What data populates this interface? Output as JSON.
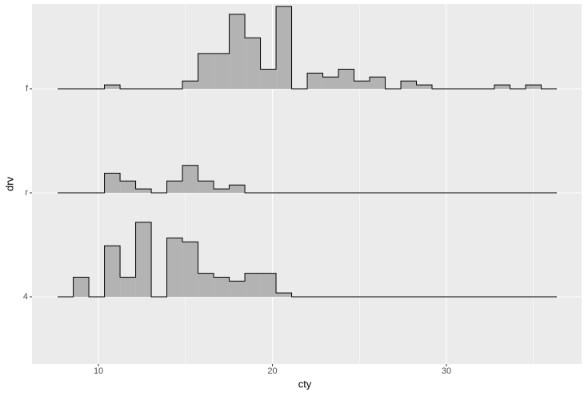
{
  "chart_data": {
    "type": "ridgeline-histogram",
    "x_label": "cty",
    "y_label": "drv",
    "categories": [
      "4",
      "r",
      "f"
    ],
    "bins": [
      7.655,
      8.552,
      9.448,
      10.345,
      11.241,
      12.138,
      13.035,
      13.931,
      14.828,
      15.724,
      16.621,
      17.517,
      18.414,
      19.31,
      20.207,
      21.103,
      22.0,
      22.897,
      23.793,
      24.69,
      25.586,
      26.483,
      27.379,
      28.276,
      29.172,
      30.069,
      30.966,
      31.862,
      32.759,
      33.655,
      34.552,
      35.448,
      36.345
    ],
    "values": [
      [
        0,
        5,
        0,
        13,
        5,
        19,
        0,
        15,
        14,
        6,
        5,
        4,
        6,
        6,
        1,
        0,
        0,
        0,
        0,
        0,
        0,
        0,
        0,
        0,
        0,
        0,
        0,
        0,
        0,
        0,
        0,
        0
      ],
      [
        0,
        0,
        0,
        5,
        3,
        1,
        0,
        3,
        7,
        3,
        1,
        2,
        0,
        0,
        0,
        0,
        0,
        0,
        0,
        0,
        0,
        0,
        0,
        0,
        0,
        0,
        0,
        0,
        0,
        0,
        0,
        0
      ],
      [
        0,
        0,
        0,
        1,
        0,
        0,
        0,
        0,
        2,
        9,
        9,
        19,
        13,
        5,
        21,
        0,
        4,
        3,
        5,
        2,
        3,
        0,
        2,
        1,
        0,
        0,
        0,
        0,
        1,
        0,
        1,
        0
      ]
    ],
    "color": "#b3b3b3",
    "xlim": [
      6.18,
      37.77
    ],
    "xticks": [
      10,
      20,
      30
    ],
    "xminorticks": [
      15,
      25,
      35
    ],
    "grid": true
  }
}
